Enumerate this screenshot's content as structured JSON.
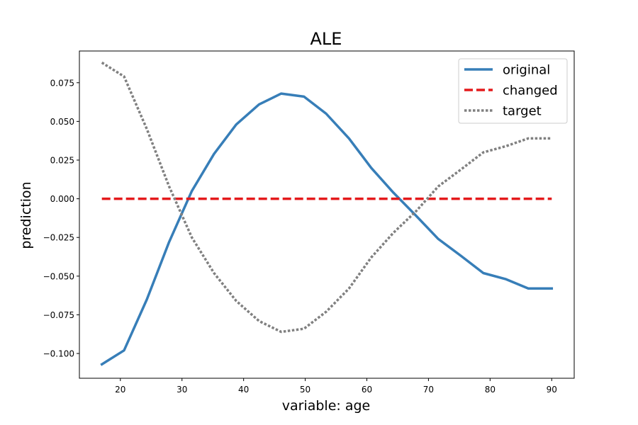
{
  "chart_data": {
    "type": "line",
    "title": "ALE",
    "xlabel": "variable: age",
    "ylabel": "prediction",
    "xlim": [
      13.35,
      93.65
    ],
    "ylim": [
      -0.116,
      0.0955
    ],
    "x_ticks": [
      20,
      30,
      40,
      50,
      60,
      70,
      80,
      90
    ],
    "x_tick_labels": [
      "20",
      "30",
      "40",
      "50",
      "60",
      "70",
      "80",
      "90"
    ],
    "y_ticks": [
      -0.1,
      -0.075,
      -0.05,
      -0.025,
      0.0,
      0.025,
      0.05,
      0.075
    ],
    "y_tick_labels": [
      "−0.100",
      "−0.075",
      "−0.050",
      "−0.025",
      "0.000",
      "0.025",
      "0.050",
      "0.075"
    ],
    "grid": false,
    "legend_position": "upper right",
    "x": [
      17.0,
      20.6,
      24.3,
      27.9,
      31.6,
      35.2,
      38.8,
      42.5,
      46.1,
      49.8,
      53.4,
      57.1,
      60.7,
      64.3,
      68.0,
      71.6,
      75.3,
      78.9,
      82.6,
      86.2,
      90.0
    ],
    "series": [
      {
        "name": "original",
        "color": "#377eb8",
        "style": "solid",
        "values": [
          -0.107,
          -0.098,
          -0.065,
          -0.028,
          0.005,
          0.029,
          0.048,
          0.061,
          0.068,
          0.066,
          0.055,
          0.039,
          0.02,
          0.004,
          -0.011,
          -0.026,
          -0.037,
          -0.048,
          -0.052,
          -0.058,
          -0.058
        ]
      },
      {
        "name": "changed",
        "color": "#e41a1c",
        "style": "dashed",
        "values": [
          0.0,
          0.0,
          0.0,
          0.0,
          0.0,
          0.0,
          0.0,
          0.0,
          0.0,
          0.0,
          0.0,
          0.0,
          0.0,
          0.0,
          0.0,
          0.0,
          0.0,
          0.0,
          0.0,
          0.0,
          0.0
        ]
      },
      {
        "name": "target",
        "color": "#808080",
        "style": "dotted",
        "values": [
          0.088,
          0.079,
          0.045,
          0.008,
          -0.025,
          -0.048,
          -0.066,
          -0.079,
          -0.086,
          -0.084,
          -0.073,
          -0.058,
          -0.038,
          -0.022,
          -0.008,
          0.008,
          0.019,
          0.03,
          0.034,
          0.039,
          0.039
        ]
      }
    ]
  }
}
